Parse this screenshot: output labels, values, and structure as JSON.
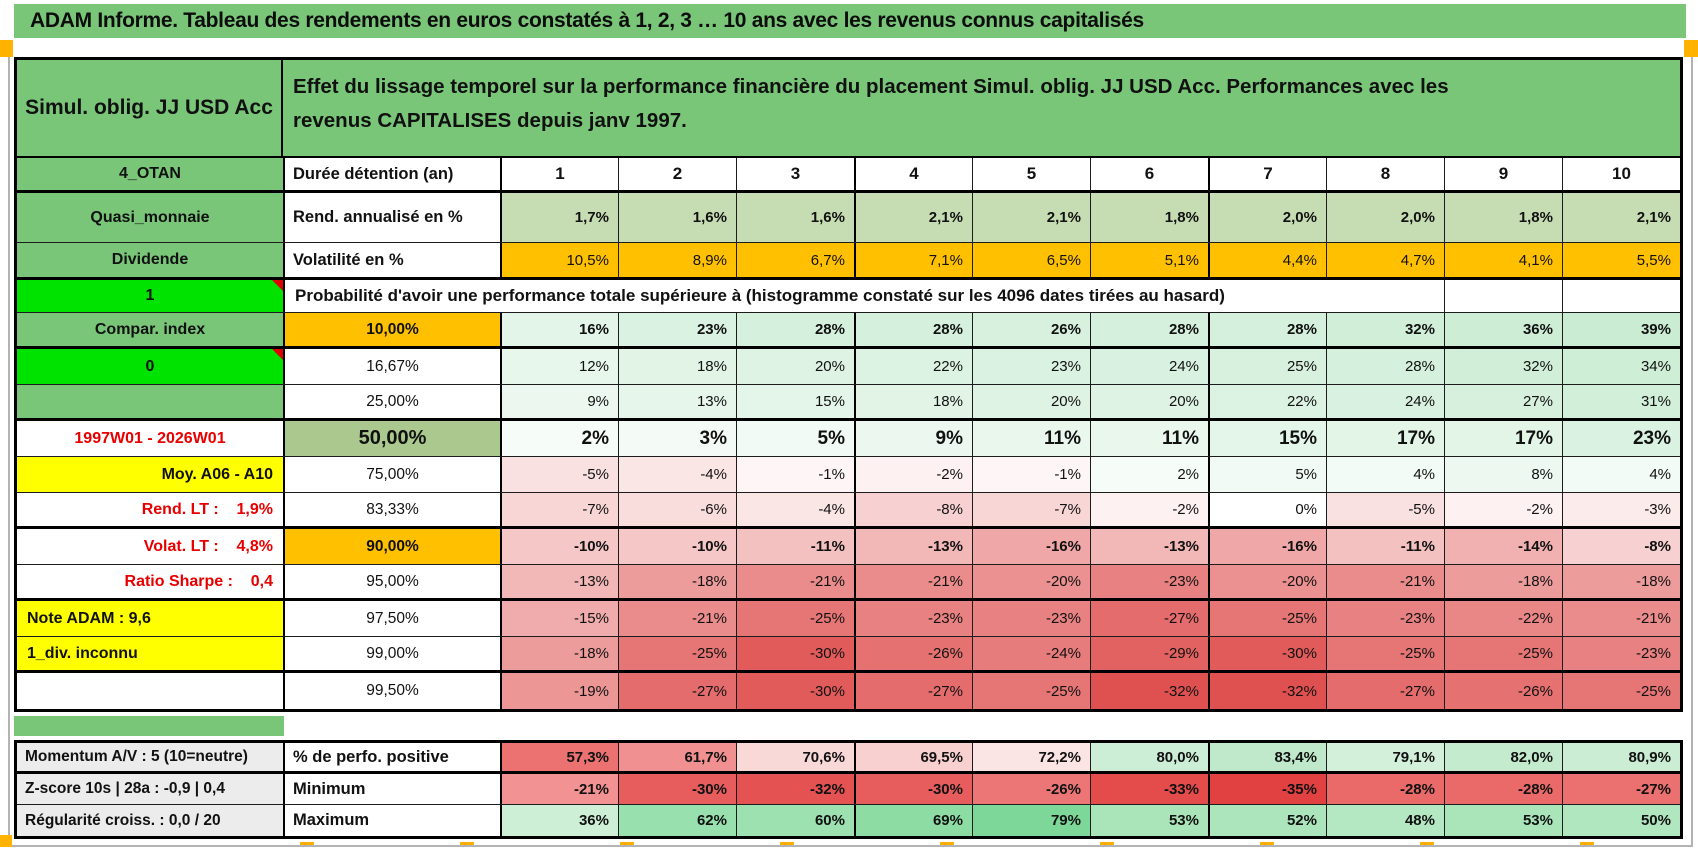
{
  "title": "ADAM Informe. Tableau des rendements en euros constatés à 1, 2, 3 … 10 ans avec les revenus connus capitalisés",
  "header": {
    "product": "Simul. oblig. JJ USD Acc",
    "description": "Effet du lissage temporel sur la performance financière du placement Simul. oblig. JJ USD Acc. Performances avec les revenus CAPITALISES depuis janv 1997."
  },
  "palette": {
    "sheet_green": "#79c679",
    "sage_green": "#c6dcb2",
    "sage_dark": "#abc98e",
    "orange": "#ffc000",
    "yellow": "#ffff00",
    "bright_green": "#00e300",
    "red_text": "#e80000",
    "gray_label_bg": "#ececec",
    "comment_marker": "#dd0000",
    "page_break_marker": "#ffb300"
  },
  "grid": {
    "col_headers": [
      "1",
      "2",
      "3",
      "4",
      "5",
      "6",
      "7",
      "8",
      "9",
      "10"
    ],
    "rows": [
      {
        "a": "4_OTAN",
        "aBg": "#79c679",
        "aBold": true,
        "b": "Durée détention (an)",
        "bAlign": "left",
        "bBold": true,
        "kind": "colheads",
        "thick": true
      },
      {
        "a": "Quasi_monnaie",
        "aBg": "#79c679",
        "aBold": true,
        "b": "Rend. annualisé en %",
        "bAlign": "left",
        "bBold": true,
        "bold": true,
        "values": [
          "1,7%",
          "1,6%",
          "1,6%",
          "2,1%",
          "2,1%",
          "1,8%",
          "2,0%",
          "2,0%",
          "1,8%",
          "2,1%"
        ],
        "bgs": [
          "#c6dcb2",
          "#c6dcb2",
          "#c6dcb2",
          "#c6dcb2",
          "#c6dcb2",
          "#c6dcb2",
          "#c6dcb2",
          "#c6dcb2",
          "#c6dcb2",
          "#c6dcb2"
        ]
      },
      {
        "a": "Dividende",
        "aBg": "#79c679",
        "aBold": true,
        "b": "Volatilité en %",
        "bAlign": "left",
        "bBold": true,
        "thick": true,
        "values": [
          "10,5%",
          "8,9%",
          "6,7%",
          "7,1%",
          "6,5%",
          "5,1%",
          "4,4%",
          "4,7%",
          "4,1%",
          "5,5%"
        ],
        "bgs": [
          "#ffc000",
          "#ffc000",
          "#ffc000",
          "#ffc000",
          "#ffc000",
          "#ffc000",
          "#ffc000",
          "#ffc000",
          "#ffc000",
          "#ffc000"
        ]
      },
      {
        "a": "1",
        "aBg": "#00e300",
        "aBold": true,
        "aComment": true,
        "merged": "Probabilité d'avoir une performance totale supérieure à (histogramme constaté sur les 4096 dates tirées au hasard)"
      },
      {
        "a": "Compar. index",
        "aBg": "#79c679",
        "aBold": true,
        "b": "10,00%",
        "bBg": "#ffc000",
        "bBold": true,
        "bold": true,
        "thick": true,
        "values": [
          "16%",
          "23%",
          "28%",
          "28%",
          "26%",
          "28%",
          "28%",
          "32%",
          "36%",
          "39%"
        ],
        "bgs": [
          "#e3f5e8",
          "#daf2e1",
          "#d5f0dc",
          "#d5f0dc",
          "#d7f1de",
          "#d5f0dc",
          "#d5f0dc",
          "#d1efd8",
          "#cdedd5",
          "#caecd2"
        ]
      },
      {
        "a": "0",
        "aBg": "#00e300",
        "aBold": true,
        "aComment": true,
        "b": "16,67%",
        "values": [
          "12%",
          "18%",
          "20%",
          "22%",
          "23%",
          "24%",
          "25%",
          "28%",
          "32%",
          "34%"
        ],
        "bgs": [
          "#e8f7ec",
          "#e1f4e6",
          "#def3e4",
          "#dcf2e2",
          "#daf2e1",
          "#d9f1e0",
          "#d8f1df",
          "#d5f0dc",
          "#d1efd8",
          "#cfeed6"
        ]
      },
      {
        "a": "",
        "aBg": "#79c679",
        "b": "25,00%",
        "thick": true,
        "values": [
          "9%",
          "13%",
          "15%",
          "18%",
          "20%",
          "20%",
          "22%",
          "24%",
          "27%",
          "31%"
        ],
        "bgs": [
          "#ecf8ef",
          "#e6f6eb",
          "#e4f5e9",
          "#e1f4e6",
          "#def3e4",
          "#def3e4",
          "#dcf2e2",
          "#d9f1e0",
          "#d6f0dd",
          "#d2efd9"
        ]
      },
      {
        "a": "1997W01 - 2026W01",
        "aColor": "#e80000",
        "aBold": true,
        "b": "50,00%",
        "bBg": "#abc98e",
        "bBold": true,
        "big": true,
        "bold": true,
        "values": [
          "2%",
          "3%",
          "5%",
          "9%",
          "11%",
          "11%",
          "15%",
          "17%",
          "17%",
          "23%"
        ],
        "bgs": [
          "#f6fcf8",
          "#f4fbf6",
          "#f1faf4",
          "#ecf8ef",
          "#e9f7ed",
          "#e9f7ed",
          "#e4f5e9",
          "#e2f5e7",
          "#e2f5e7",
          "#daf2e1"
        ]
      },
      {
        "a": "Moy. A06 - A10",
        "aBg": "#ffff00",
        "aBold": true,
        "aAlign": "right",
        "b": "75,00%",
        "values": [
          "-5%",
          "-4%",
          "-1%",
          "-2%",
          "-1%",
          "2%",
          "5%",
          "4%",
          "8%",
          "4%"
        ],
        "bgs": [
          "#fae1e1",
          "#fbe6e6",
          "#fef6f6",
          "#fdf1f1",
          "#fef6f6",
          "#f6fcf8",
          "#f1faf4",
          "#f2fbf5",
          "#edf9f0",
          "#f2fbf5"
        ]
      },
      {
        "a": "Rend. LT :    1,9%",
        "aColor": "#e80000",
        "aBold": true,
        "aAlign": "right",
        "b": "83,33%",
        "thick": true,
        "values": [
          "-7%",
          "-6%",
          "-4%",
          "-8%",
          "-7%",
          "-2%",
          "0%",
          "-5%",
          "-2%",
          "-3%"
        ],
        "bgs": [
          "#f8d6d6",
          "#f9dcdc",
          "#fbe6e6",
          "#f7d1d1",
          "#f8d6d6",
          "#fdf1f1",
          "#ffffff",
          "#fae1e1",
          "#fdf1f1",
          "#fcebeb"
        ]
      },
      {
        "a": "Volat. LT :    4,8%",
        "aColor": "#e80000",
        "aBold": true,
        "aAlign": "right",
        "b": "90,00%",
        "bBg": "#ffc000",
        "bBold": true,
        "bold": true,
        "values": [
          "-10%",
          "-10%",
          "-11%",
          "-13%",
          "-16%",
          "-13%",
          "-16%",
          "-11%",
          "-14%",
          "-8%"
        ],
        "bgs": [
          "#f5c7c7",
          "#f5c7c7",
          "#f4c1c1",
          "#f2b7b7",
          "#efa7a7",
          "#f2b7b7",
          "#efa7a7",
          "#f4c1c1",
          "#f1b1b1",
          "#f7d1d1"
        ]
      },
      {
        "a": "Ratio Sharpe :    0,4",
        "aColor": "#e80000",
        "aBold": true,
        "aAlign": "right",
        "b": "95,00%",
        "thick": true,
        "values": [
          "-13%",
          "-18%",
          "-21%",
          "-21%",
          "-20%",
          "-23%",
          "-20%",
          "-21%",
          "-18%",
          "-18%"
        ],
        "bgs": [
          "#f2b7b7",
          "#ed9c9c",
          "#ea8c8c",
          "#ea8c8c",
          "#eb9191",
          "#e88181",
          "#eb9191",
          "#ea8c8c",
          "#ed9c9c",
          "#ed9c9c"
        ]
      },
      {
        "a": "Note ADAM : 9,6",
        "aBg": "#ffff00",
        "aBold": true,
        "aAlign": "left",
        "b": "97,50%",
        "values": [
          "-15%",
          "-21%",
          "-25%",
          "-23%",
          "-23%",
          "-27%",
          "-25%",
          "-23%",
          "-22%",
          "-21%"
        ],
        "bgs": [
          "#f0acac",
          "#ea8c8c",
          "#e67676",
          "#e88181",
          "#e88181",
          "#e46c6c",
          "#e67676",
          "#e88181",
          "#e98686",
          "#ea8c8c"
        ]
      },
      {
        "a": "1_div. inconnu",
        "aBg": "#ffff00",
        "aBold": true,
        "aAlign": "left",
        "b": "99,00%",
        "thick": true,
        "values": [
          "-18%",
          "-25%",
          "-30%",
          "-26%",
          "-24%",
          "-29%",
          "-30%",
          "-25%",
          "-25%",
          "-23%"
        ],
        "bgs": [
          "#ed9c9c",
          "#e67676",
          "#e15b5b",
          "#e57171",
          "#e77c7c",
          "#e26161",
          "#e15b5b",
          "#e67676",
          "#e67676",
          "#e88181"
        ]
      },
      {
        "a": "",
        "b": "99,50%",
        "values": [
          "-19%",
          "-27%",
          "-30%",
          "-27%",
          "-25%",
          "-32%",
          "-32%",
          "-27%",
          "-26%",
          "-25%"
        ],
        "bgs": [
          "#ec9696",
          "#e46c6c",
          "#e15b5b",
          "#e46c6c",
          "#e67676",
          "#df5151",
          "#df5151",
          "#e46c6c",
          "#e57171",
          "#e67676"
        ]
      }
    ]
  },
  "bottom": {
    "rows": [
      {
        "a": "Momentum A/V : 5 (10=neutre)",
        "b": "% de perfo. positive",
        "bold": true,
        "thick": true,
        "values": [
          "57,3%",
          "61,7%",
          "70,6%",
          "69,5%",
          "72,2%",
          "80,0%",
          "83,4%",
          "79,1%",
          "82,0%",
          "80,9%"
        ],
        "bgs": [
          "#ec7272",
          "#f09090",
          "#f9d8d8",
          "#f8d0d0",
          "#fbe4e4",
          "#cdeed6",
          "#bfe9ca",
          "#d2f0da",
          "#c5ebcf",
          "#caedd3"
        ]
      },
      {
        "a": "Z-score 10s | 28a : -0,9 | 0,4",
        "b": "Minimum",
        "bold": true,
        "values": [
          "-21%",
          "-30%",
          "-32%",
          "-30%",
          "-26%",
          "-33%",
          "-35%",
          "-28%",
          "-28%",
          "-27%"
        ],
        "bgs": [
          "#f29292",
          "#e75d5d",
          "#e55252",
          "#e75d5d",
          "#ec7676",
          "#e44c4c",
          "#e24141",
          "#ea6a6a",
          "#ea6a6a",
          "#eb7070"
        ]
      },
      {
        "a": "Régularité croiss. : 0,0 / 20",
        "b": "Maximum",
        "bold": true,
        "values": [
          "36%",
          "62%",
          "60%",
          "69%",
          "79%",
          "53%",
          "52%",
          "48%",
          "53%",
          "50%"
        ],
        "bgs": [
          "#ccefd5",
          "#98e0ad",
          "#9ce1af",
          "#8cdca4",
          "#7dd799",
          "#aae5ba",
          "#ace5bc",
          "#b4e8c2",
          "#aae5ba",
          "#b0e7bf"
        ]
      }
    ]
  }
}
